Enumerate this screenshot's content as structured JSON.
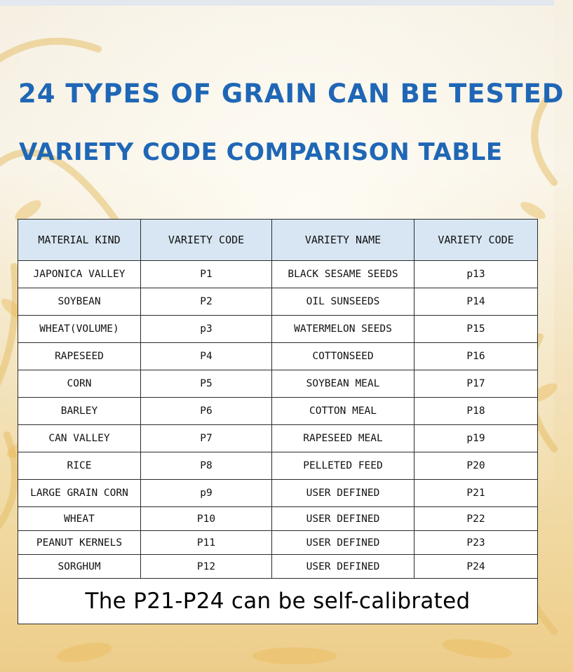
{
  "title_main": "24 TYPES OF GRAIN CAN BE TESTED",
  "title_sub": "VARIETY CODE COMPARISON TABLE",
  "colors": {
    "title": "#1f67b6",
    "header_bg": "#d7e6f2",
    "border": "#2b2b2b"
  },
  "table": {
    "headers": [
      "MATERIAL KIND",
      "VARIETY CODE",
      "VARIETY NAME",
      "VARIETY CODE"
    ],
    "rows": [
      [
        "JAPONICA VALLEY",
        "P1",
        "BLACK SESAME SEEDS",
        "p13"
      ],
      [
        "SOYBEAN",
        "P2",
        "OIL SUNSEEDS",
        "P14"
      ],
      [
        "WHEAT(VOLUME)",
        "p3",
        "WATERMELON SEEDS",
        "P15"
      ],
      [
        "RAPESEED",
        "P4",
        "COTTONSEED",
        "P16"
      ],
      [
        "CORN",
        "P5",
        "SOYBEAN MEAL",
        "P17"
      ],
      [
        "BARLEY",
        "P6",
        "COTTON MEAL",
        "P18"
      ],
      [
        "CAN VALLEY",
        "P7",
        "RAPESEED MEAL",
        "p19"
      ],
      [
        "RICE",
        "P8",
        "PELLETED FEED",
        "P20"
      ],
      [
        "LARGE GRAIN CORN",
        "p9",
        "USER DEFINED",
        "P21"
      ],
      [
        "WHEAT",
        "P10",
        "USER DEFINED",
        "P22"
      ],
      [
        "PEANUT KERNELS",
        "P11",
        "USER DEFINED",
        "P23"
      ],
      [
        "SORGHUM",
        "P12",
        "USER DEFINED",
        "P24"
      ]
    ],
    "footer": "The P21-P24 can be self-calibrated"
  }
}
